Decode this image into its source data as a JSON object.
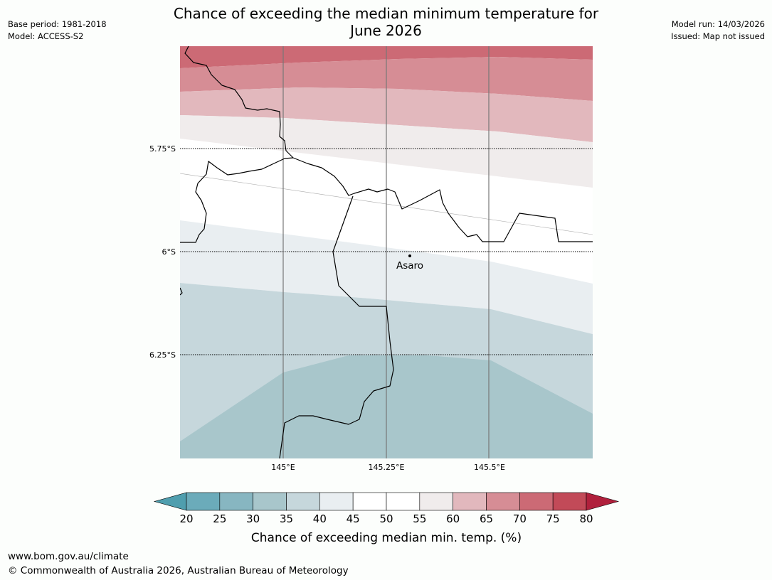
{
  "title": {
    "line1": "Chance of exceeding the median minimum temperature for",
    "line2": "June 2026"
  },
  "meta_left": {
    "base_period": "Base period: 1981-2018",
    "model": "Model: ACCESS-S2"
  },
  "meta_right": {
    "model_run": "Model run: 14/03/2026",
    "issued": "Issued: Map not issued"
  },
  "map": {
    "lat_labels": [
      "5.75°S",
      "6°S",
      "6.25°S"
    ],
    "lon_labels": [
      "145°E",
      "145.25°E",
      "145.5°E"
    ],
    "place_label": "Asaro"
  },
  "colorbar": {
    "ticks": [
      "20",
      "25",
      "30",
      "35",
      "40",
      "45",
      "50",
      "55",
      "60",
      "65",
      "70",
      "75",
      "80"
    ],
    "label": "Chance of exceeding median min. temp. (%)",
    "colors": {
      "under": "#4f9eae",
      "bins": [
        "#6babba",
        "#87b6c1",
        "#a8c6cb",
        "#c6d7dc",
        "#e9eef1",
        "#ffffff",
        "#ffffff",
        "#f0ecec",
        "#e2b8bd",
        "#d68d95",
        "#cc6a75",
        "#c24a58"
      ],
      "over": "#b0203c"
    }
  },
  "footer": {
    "url": "www.bom.gov.au/climate",
    "copyright": "© Commonwealth of Australia 2026, Australian Bureau of Meteorology"
  }
}
